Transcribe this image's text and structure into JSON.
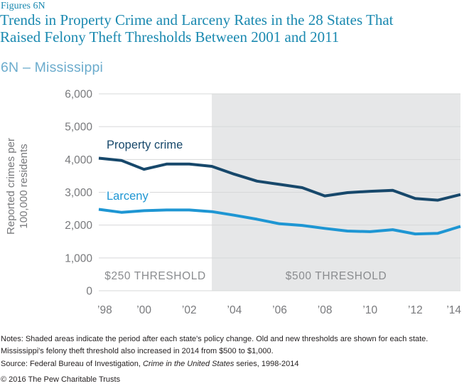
{
  "header": {
    "figure_label": "Figures 6N",
    "title": "Trends in Property Crime and Larceny Rates in the 28 States That Raised Felony Theft Thresholds Between 2001 and 2011",
    "title_line1": "Trends in Property Crime and Larceny Rates in the 28 States That",
    "title_line2": "Raised Felony Theft Thresholds Between 2001 and 2011",
    "subtitle": "6N – Mississippi"
  },
  "chart_data": {
    "type": "line",
    "title": "6N – Mississippi",
    "x": [
      1998,
      1999,
      2000,
      2001,
      2002,
      2003,
      2004,
      2005,
      2006,
      2007,
      2008,
      2009,
      2010,
      2011,
      2012,
      2013,
      2014
    ],
    "series": [
      {
        "name": "Property crime",
        "color": "#17486b",
        "values": [
          4040,
          3970,
          3700,
          3860,
          3860,
          3790,
          3550,
          3340,
          3240,
          3140,
          2890,
          2990,
          3030,
          3060,
          2810,
          2760,
          2930
        ]
      },
      {
        "name": "Larceny",
        "color": "#1e96d3",
        "values": [
          2480,
          2390,
          2440,
          2460,
          2460,
          2410,
          2300,
          2180,
          2040,
          1990,
          1900,
          1820,
          1800,
          1860,
          1730,
          1750,
          1960
        ]
      }
    ],
    "xlabel": "",
    "ylabel": "Reported crimes per 100,000 residents",
    "ylabel_lines": [
      "Reported crimes per",
      "100,000 residents"
    ],
    "ylim": [
      0,
      6000
    ],
    "grid": true,
    "legend": "inline-labels",
    "shaded_color": "#e6e7e8",
    "gridline_color": "#d7d8d9",
    "yticks": [
      {
        "v": 0,
        "label": "0"
      },
      {
        "v": 1000,
        "label": "1,000"
      },
      {
        "v": 2000,
        "label": "2,000"
      },
      {
        "v": 3000,
        "label": "3,000"
      },
      {
        "v": 4000,
        "label": "4,000"
      },
      {
        "v": 5000,
        "label": "5,000"
      },
      {
        "v": 6000,
        "label": "6,000"
      }
    ],
    "xticks": [
      {
        "year": 1998,
        "label": "’98"
      },
      {
        "year": 2000,
        "label": "’00"
      },
      {
        "year": 2002,
        "label": "’02"
      },
      {
        "year": 2004,
        "label": "’04"
      },
      {
        "year": 2006,
        "label": "’06"
      },
      {
        "year": 2008,
        "label": "’08"
      },
      {
        "year": 2010,
        "label": "’10"
      },
      {
        "year": 2012,
        "label": "’12"
      },
      {
        "year": 2014,
        "label": "’14"
      }
    ],
    "regions": [
      {
        "label": "$250 THRESHOLD",
        "from": 1998,
        "to": 2003,
        "shaded": false
      },
      {
        "label": "$500 THRESHOLD",
        "from": 2003,
        "to": 2014,
        "shaded": true
      }
    ]
  },
  "footer": {
    "notes": "Notes: Shaded areas indicate the period after each state's policy change. Old and new thresholds are shown for each state. Mississippi's felony theft threshold also increased in 2014 from $500 to $1,000.",
    "source_prefix": "Source: Federal Bureau of Investigation, ",
    "source_italic": "Crime in the United States",
    "source_suffix": " series, 1998-2014",
    "copyright": "© 2016 The Pew Charitable Trusts"
  },
  "colors": {
    "heading_teal": "#1a89b0",
    "subtitle_blue": "#6caccd",
    "property_crime_line": "#17486b",
    "larceny_line": "#1e96d3",
    "axis_text_gray": "#78797c",
    "threshold_label_gray": "#8a8c8f",
    "gridline_gray": "#d7d8d9",
    "shaded_region_gray": "#e6e7e8",
    "body_text": "#231f20"
  }
}
